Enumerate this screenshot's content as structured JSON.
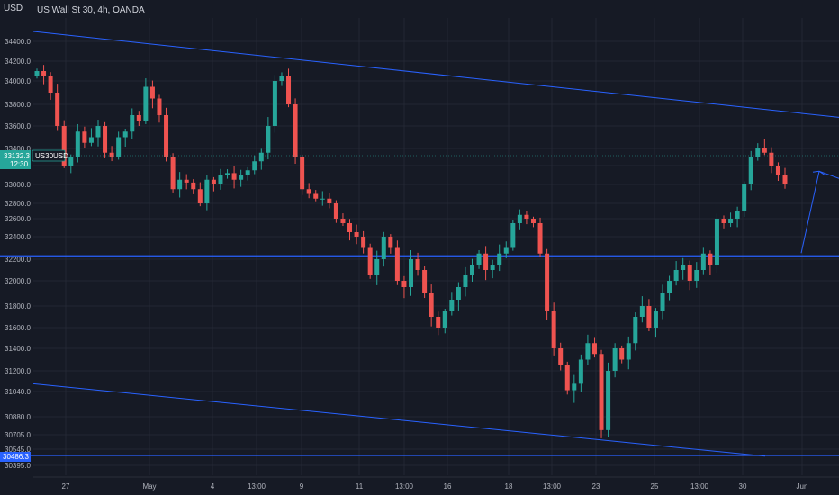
{
  "chart_title": "US Wall St 30, 4h, OANDA",
  "y_unit": "USD",
  "colors": {
    "background": "#161a25",
    "grid": "#232734",
    "up": "#26a69a",
    "down": "#ef5350",
    "trendline": "#2962ff",
    "text": "#b2b5be",
    "price_tag": "#26a69a",
    "level_tag": "#2962ff"
  },
  "price_tag": {
    "price": "33132.3",
    "countdown": "12:30",
    "symbol": "US30USD"
  },
  "level_tag": {
    "price": "30486.3"
  },
  "chart_data": {
    "type": "candlestick",
    "title": "US Wall St 30, 4h, OANDA",
    "ylabel": "USD",
    "ylim": [
      30330,
      34560
    ],
    "y_ticks": [
      "34400.0",
      "34200.0",
      "34000.0",
      "33800.0",
      "33600.0",
      "33400.0",
      "33200.0",
      "33000.0",
      "32800.0",
      "32600.0",
      "32400.0",
      "32200.0",
      "32000.0",
      "31800.0",
      "31600.0",
      "31400.0",
      "31200.0",
      "31040.0",
      "30880.0",
      "30705.0",
      "30545.0",
      "30395.0"
    ],
    "x_ticks": [
      "27",
      "May",
      "4",
      "13:00",
      "9",
      "11",
      "13:00",
      "16",
      "18",
      "13:00",
      "23",
      "25",
      "13:00",
      "30",
      "Jun"
    ],
    "grid": true,
    "levels": [
      32230,
      30486
    ],
    "trendlines": [
      {
        "from": [
          "27",
          34500
        ],
        "to": [
          "Jun",
          33720
        ]
      },
      {
        "from": [
          "27",
          31100
        ],
        "to": [
          "Jun",
          30480
        ]
      },
      {
        "from": [
          "Jun",
          32230
        ],
        "to": [
          "Jun",
          33140
        ]
      }
    ],
    "closes": [
      34100,
      34050,
      33900,
      33600,
      33200,
      33300,
      33550,
      33450,
      33500,
      33600,
      33350,
      33300,
      33500,
      33550,
      33700,
      33650,
      33950,
      33850,
      33700,
      33300,
      32950,
      33050,
      33020,
      32950,
      32800,
      33050,
      33000,
      33100,
      33120,
      33050,
      33100,
      33150,
      33250,
      33350,
      33600,
      34000,
      34050,
      33800,
      33300,
      32950,
      32900,
      32850,
      32850,
      32800,
      32600,
      32550,
      32450,
      32400,
      32300,
      32050,
      32200,
      32400,
      32300,
      32000,
      31950,
      32200,
      32100,
      31900,
      31700,
      31600,
      31750,
      31850,
      31950,
      32050,
      32150,
      32250,
      32100,
      32150,
      32250,
      32300,
      32550,
      32650,
      32600,
      32550,
      32250,
      31750,
      31400,
      31250,
      31050,
      31100,
      31300,
      31450,
      31350,
      30750,
      31200,
      31400,
      31300,
      31450,
      31700,
      31800,
      31600,
      31750,
      31900,
      32000,
      32100,
      32150,
      32000,
      32100,
      32250,
      32150,
      32600,
      32550,
      32600,
      32700,
      33000,
      33300,
      33400,
      33350,
      33200,
      33100,
      33000
    ]
  }
}
